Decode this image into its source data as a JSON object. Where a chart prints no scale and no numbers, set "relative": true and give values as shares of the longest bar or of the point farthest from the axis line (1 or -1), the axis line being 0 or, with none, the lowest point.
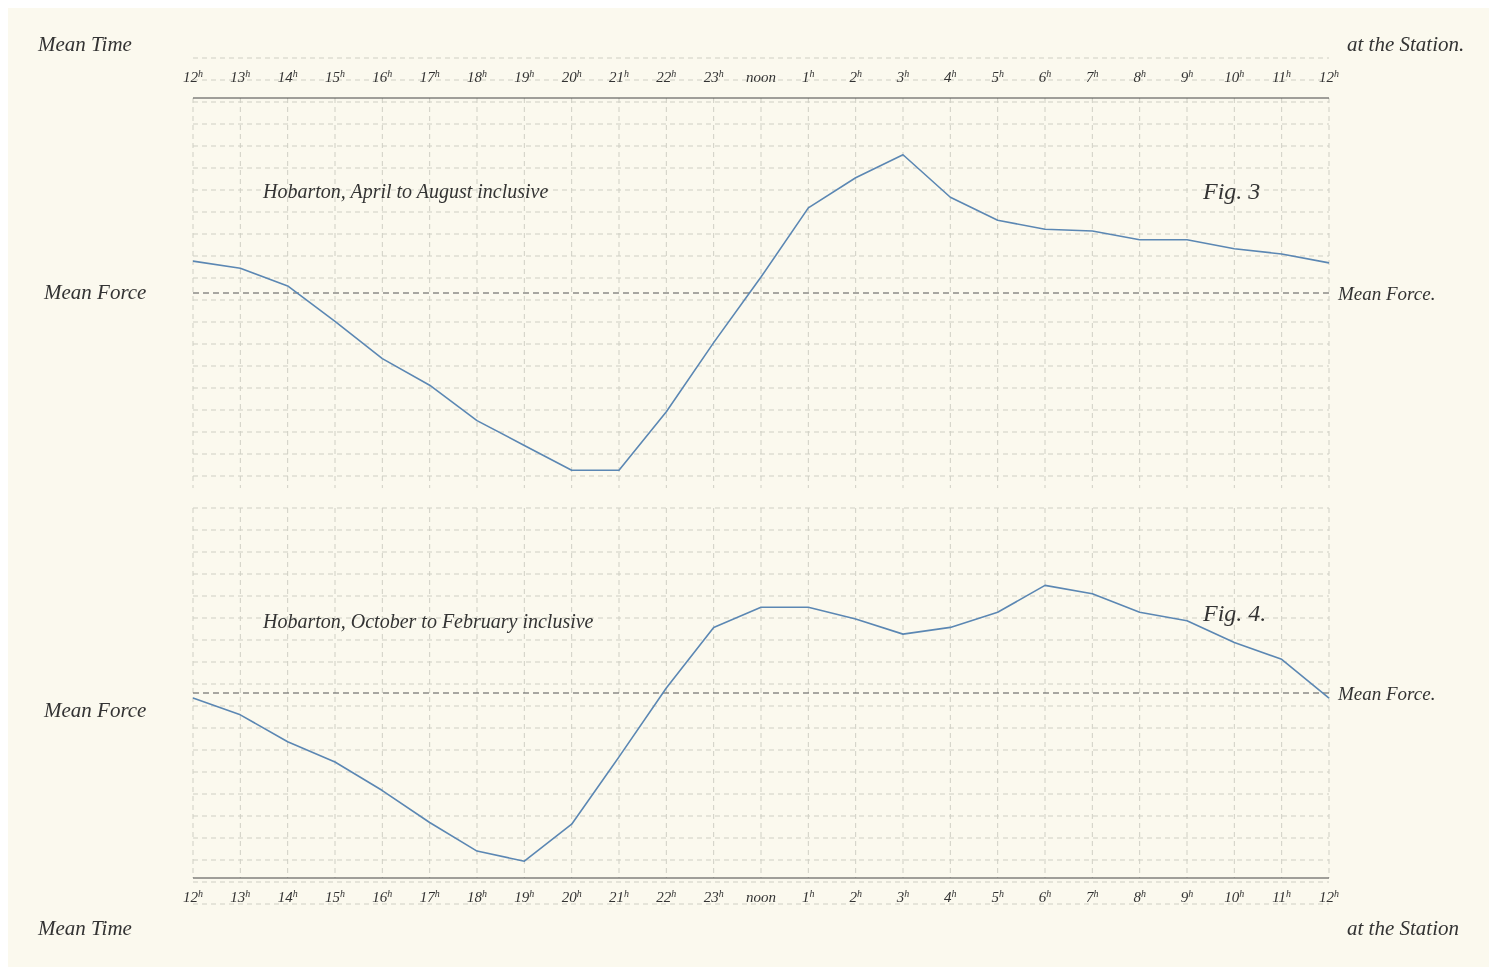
{
  "chart_data": [
    {
      "type": "line",
      "title": "Fig. 3",
      "subtitle": "Hobarton, April to August inclusive",
      "xlabel": "Mean Time",
      "ylabel": "Mean Force",
      "annotations": [
        "at the Station."
      ],
      "relative": true,
      "grid": true,
      "marker": "none",
      "line_style": "solid",
      "color": "#5b87b3",
      "categories": [
        "12$^{h}$",
        "13$^{h}$",
        "14$^{h}$",
        "15$^{h}$",
        "16$^{h}$",
        "17$^{h}$",
        "18$^{h}$",
        "19$^{h}$",
        "20$^{h}$",
        "21$^{h}$",
        "22$^{h}$",
        "23$^{h}$",
        "noon",
        "1$^{h}$",
        "2$^{h}$",
        "3$^{h}$",
        "4$^{h}$",
        "5$^{h}$",
        "6$^{h}$",
        "7$^{h}$",
        "8$^{h}$",
        "9$^{h}$",
        "10$^{h}$",
        "11$^{h}$",
        "12$^{h}$"
      ],
      "values": [
        0.18,
        0.14,
        0.04,
        -0.16,
        -0.37,
        -0.52,
        -0.72,
        -0.86,
        -1,
        -1,
        -0.67,
        -0.28,
        0.09,
        0.48,
        0.65,
        0.78,
        0.54,
        0.41,
        0.36,
        0.35,
        0.3,
        0.3,
        0.25,
        0.22,
        0.17
      ],
      "ref_lines": [
        {
          "axis": "y",
          "value": 0,
          "label": "Mean Force.",
          "line_style": "dashed"
        }
      ]
    },
    {
      "type": "line",
      "title": "Fig. 4.",
      "subtitle": "Hobarton, October to February inclusive",
      "xlabel": "Mean Time",
      "ylabel": "Mean Force",
      "annotations": [
        "at the Station"
      ],
      "relative": true,
      "grid": true,
      "marker": "none",
      "line_style": "solid",
      "color": "#5b87b3",
      "categories": [
        "12$^{h}$",
        "13$^{h}$",
        "14$^{h}$",
        "15$^{h}$",
        "16$^{h}$",
        "17$^{h}$",
        "18$^{h}$",
        "19$^{h}$",
        "20$^{h}$",
        "21$^{h}$",
        "22$^{h}$",
        "23$^{h}$",
        "noon",
        "1$^{h}$",
        "2$^{h}$",
        "3$^{h}$",
        "4$^{h}$",
        "5$^{h}$",
        "6$^{h}$",
        "7$^{h}$",
        "8$^{h}$",
        "9$^{h}$",
        "10$^{h}$",
        "11$^{h}$",
        "12$^{h}$"
      ],
      "values": [
        -0.03,
        -0.13,
        -0.29,
        -0.41,
        -0.58,
        -0.77,
        -0.94,
        -1,
        -0.78,
        -0.38,
        0.03,
        0.39,
        0.51,
        0.51,
        0.44,
        0.35,
        0.39,
        0.48,
        0.64,
        0.59,
        0.48,
        0.43,
        0.3,
        0.2,
        -0.03
      ],
      "ref_lines": [
        {
          "axis": "y",
          "value": 0,
          "label": "Mean Force.",
          "line_style": "dashed"
        }
      ]
    }
  ]
}
